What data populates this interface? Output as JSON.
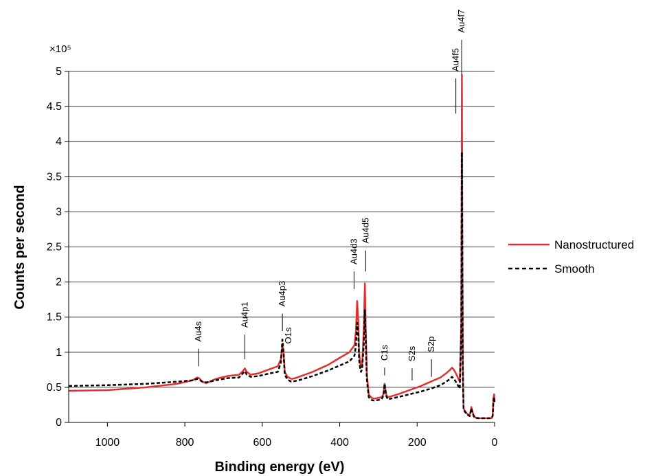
{
  "chart_data": {
    "type": "line",
    "title": "",
    "xlabel": "Binding energy (eV)",
    "ylabel": "Counts per second",
    "y_multiplier_label": "×10⁵",
    "xlim": [
      1100,
      0
    ],
    "ylim": [
      0,
      5
    ],
    "x_reversed": true,
    "x_ticks": [
      1000,
      800,
      600,
      400,
      200,
      0
    ],
    "y_ticks": [
      0,
      0.5,
      1,
      1.5,
      2,
      2.5,
      3,
      3.5,
      4,
      4.5,
      5
    ],
    "y_tick_labels": [
      "0",
      "0.5",
      "1",
      "1.5",
      "2",
      "2.5",
      "3",
      "3.5",
      "4",
      "4.5",
      "5"
    ],
    "grid": "horizontal",
    "legend_position": "right",
    "colors": {
      "nanostructured": "#e03030",
      "smooth": "#000000"
    },
    "series": [
      {
        "name": "Nanostructured",
        "style": "solid",
        "x": [
          1100,
          1000,
          900,
          820,
          780,
          768,
          763,
          755,
          745,
          720,
          690,
          660,
          650,
          645,
          640,
          630,
          610,
          580,
          560,
          552,
          548,
          545,
          542,
          535,
          525,
          515,
          500,
          470,
          430,
          400,
          375,
          362,
          358,
          355,
          352,
          350,
          348,
          345,
          342,
          338,
          335,
          333,
          330,
          325,
          318,
          310,
          300,
          292,
          287,
          284,
          280,
          276,
          268,
          250,
          220,
          190,
          165,
          140,
          125,
          115,
          110,
          105,
          100,
          95,
          90,
          86,
          84.5,
          83.5,
          82,
          80,
          75,
          70,
          64,
          60,
          57,
          54,
          50,
          40,
          20,
          8,
          5,
          3,
          1,
          0
        ],
        "y": [
          0.45,
          0.46,
          0.5,
          0.55,
          0.6,
          0.64,
          0.63,
          0.58,
          0.56,
          0.62,
          0.66,
          0.68,
          0.73,
          0.77,
          0.72,
          0.68,
          0.7,
          0.76,
          0.8,
          0.9,
          1.1,
          1.0,
          0.72,
          0.65,
          0.62,
          0.63,
          0.66,
          0.72,
          0.82,
          0.92,
          1.0,
          1.1,
          1.3,
          1.73,
          1.45,
          1.0,
          0.88,
          0.78,
          0.82,
          1.3,
          1.98,
          1.4,
          0.7,
          0.4,
          0.35,
          0.34,
          0.35,
          0.36,
          0.4,
          0.55,
          0.4,
          0.36,
          0.37,
          0.4,
          0.46,
          0.52,
          0.58,
          0.64,
          0.7,
          0.75,
          0.78,
          0.75,
          0.7,
          0.64,
          0.58,
          1.4,
          4.95,
          3.2,
          0.8,
          0.2,
          0.15,
          0.12,
          0.1,
          0.22,
          0.15,
          0.1,
          0.07,
          0.06,
          0.06,
          0.06,
          0.1,
          0.35,
          0.4,
          0.3
        ]
      },
      {
        "name": "Smooth",
        "style": "dashed",
        "x": [
          1100,
          1000,
          900,
          820,
          780,
          768,
          763,
          755,
          745,
          720,
          690,
          660,
          650,
          645,
          640,
          630,
          610,
          580,
          560,
          552,
          548,
          545,
          542,
          535,
          525,
          515,
          500,
          470,
          430,
          400,
          375,
          362,
          358,
          355,
          352,
          350,
          348,
          345,
          342,
          338,
          335,
          333,
          330,
          325,
          318,
          310,
          300,
          292,
          287,
          284,
          280,
          276,
          268,
          250,
          220,
          190,
          165,
          140,
          125,
          115,
          110,
          105,
          100,
          95,
          90,
          86,
          84.5,
          83.5,
          82,
          80,
          75,
          70,
          64,
          60,
          57,
          54,
          50,
          40,
          20,
          8,
          5,
          3,
          1,
          0
        ],
        "y": [
          0.52,
          0.53,
          0.55,
          0.58,
          0.6,
          0.62,
          0.61,
          0.58,
          0.57,
          0.6,
          0.63,
          0.64,
          0.7,
          0.73,
          0.68,
          0.65,
          0.66,
          0.7,
          0.72,
          0.85,
          1.18,
          1.0,
          0.68,
          0.61,
          0.58,
          0.59,
          0.61,
          0.66,
          0.74,
          0.81,
          0.87,
          0.95,
          1.1,
          1.42,
          1.25,
          0.9,
          0.8,
          0.72,
          0.76,
          1.1,
          1.6,
          1.2,
          0.62,
          0.36,
          0.32,
          0.31,
          0.32,
          0.33,
          0.38,
          0.55,
          0.38,
          0.33,
          0.34,
          0.36,
          0.4,
          0.44,
          0.48,
          0.53,
          0.58,
          0.62,
          0.65,
          0.62,
          0.58,
          0.53,
          0.48,
          1.2,
          3.85,
          2.6,
          0.7,
          0.18,
          0.14,
          0.11,
          0.09,
          0.2,
          0.14,
          0.09,
          0.06,
          0.06,
          0.06,
          0.06,
          0.09,
          0.3,
          0.36,
          0.28
        ]
      }
    ],
    "annotations": [
      {
        "label": "Au4s",
        "x": 765,
        "line_y": [
          0.8,
          1.05
        ],
        "text_y": 1.15
      },
      {
        "label": "Au4p1",
        "x": 645,
        "line_y": [
          0.9,
          1.25
        ],
        "text_y": 1.35
      },
      {
        "label": "Au4p3",
        "x": 548,
        "line_y": [
          1.3,
          1.55
        ],
        "text_y": 1.65
      },
      {
        "label": "O1s",
        "x": 532,
        "line_y": null,
        "text_y": 1.12
      },
      {
        "label": "Au4d3",
        "x": 363,
        "line_y": [
          1.9,
          2.15
        ],
        "text_y": 2.25
      },
      {
        "label": "Au4d5",
        "x": 333,
        "line_y": [
          2.15,
          2.45
        ],
        "text_y": 2.55
      },
      {
        "label": "C1s",
        "x": 284,
        "line_y": [
          0.67,
          0.78
        ],
        "text_y": 0.88
      },
      {
        "label": "S2s",
        "x": 213,
        "line_y": [
          0.6,
          0.77
        ],
        "text_y": 0.87
      },
      {
        "label": "S2p",
        "x": 163,
        "line_y": [
          0.65,
          0.9
        ],
        "text_y": 1.0
      },
      {
        "label": "Au4f5",
        "x": 100,
        "line_y": [
          4.4,
          4.9
        ],
        "text_y": 5.0
      },
      {
        "label": "Au4f7",
        "x": 85,
        "line_y": [
          4.95,
          5.45
        ],
        "text_y": 5.55
      }
    ]
  }
}
